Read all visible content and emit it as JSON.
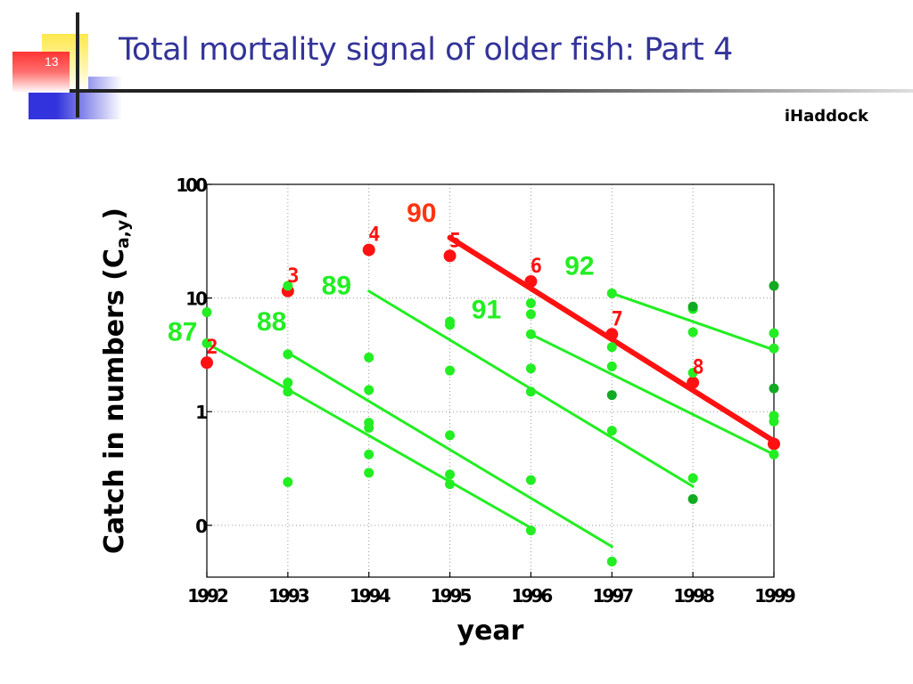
{
  "slide": {
    "number": "13",
    "title": "Total mortality signal of older fish: Part 4",
    "species": "iHaddock",
    "colors": {
      "title": "#333399",
      "accent_blue": "#3333dd",
      "accent_red": "#ff3333"
    }
  },
  "chart_data": {
    "type": "scatter",
    "xlabel": "year",
    "ylabel": "Catch in numbers (Ca,y)",
    "ylabel_main": "Catch in numbers (C",
    "ylabel_sub": "a,y",
    "ylabel_close": ")",
    "y_scale": "log",
    "xlim": [
      1992,
      1999
    ],
    "ylim": [
      0.035,
      100
    ],
    "grid": true,
    "xticks": [
      {
        "value": 1992,
        "label": "1992"
      },
      {
        "value": 1993,
        "label": "1993"
      },
      {
        "value": 1994,
        "label": "1994"
      },
      {
        "value": 1995,
        "label": "1995"
      },
      {
        "value": 1996,
        "label": "1996"
      },
      {
        "value": 1997,
        "label": "1997"
      },
      {
        "value": 1998,
        "label": "1998"
      },
      {
        "value": 1999,
        "label": "1999"
      }
    ],
    "yticks": [
      {
        "value": 100,
        "label": "100"
      },
      {
        "value": 10,
        "label": "10"
      },
      {
        "value": 1,
        "label": "1"
      },
      {
        "value": 0.1,
        "label": "0"
      }
    ],
    "series": [
      {
        "color": "#ff1111",
        "cohort": "90",
        "points": [
          [
            1992,
            2.7
          ],
          [
            1993,
            11.5
          ],
          [
            1994,
            26.5
          ],
          [
            1995,
            23.5
          ],
          [
            1996,
            14
          ],
          [
            1997,
            4.8
          ],
          [
            1998,
            1.8
          ],
          [
            1999,
            0.52
          ]
        ],
        "age_labels": [
          {
            "x": 1992,
            "y": 2.7,
            "text": "2"
          },
          {
            "x": 1993,
            "y": 11.5,
            "text": "3"
          },
          {
            "x": 1994,
            "y": 26.5,
            "text": "4"
          },
          {
            "x": 1995,
            "y": 23.5,
            "text": "5"
          },
          {
            "x": 1996,
            "y": 14,
            "text": "6"
          },
          {
            "x": 1997,
            "y": 4.8,
            "text": "7"
          },
          {
            "x": 1998,
            "y": 1.8,
            "text": "8"
          }
        ],
        "fit_line": [
          [
            1995,
            34
          ],
          [
            1999,
            0.55
          ]
        ]
      },
      {
        "color": "#22ee22",
        "points": [
          [
            1992,
            7.5
          ],
          [
            1992,
            4.0
          ],
          [
            1993,
            12.8
          ],
          [
            1993,
            3.2
          ],
          [
            1993,
            1.8
          ],
          [
            1993,
            1.5
          ],
          [
            1993,
            0.24
          ],
          [
            1994,
            3.0
          ],
          [
            1994,
            1.55
          ],
          [
            1994,
            0.8
          ],
          [
            1994,
            0.72
          ],
          [
            1994,
            0.42
          ],
          [
            1994,
            0.29
          ],
          [
            1995,
            6.2
          ],
          [
            1995,
            5.8
          ],
          [
            1995,
            2.3
          ],
          [
            1995,
            0.62
          ],
          [
            1995,
            0.28
          ],
          [
            1995,
            0.23
          ],
          [
            1996,
            9.0
          ],
          [
            1996,
            7.2
          ],
          [
            1996,
            4.8
          ],
          [
            1996,
            2.4
          ],
          [
            1996,
            1.5
          ],
          [
            1996,
            0.25
          ],
          [
            1996,
            0.09
          ],
          [
            1997,
            11
          ],
          [
            1997,
            3.7
          ],
          [
            1997,
            2.5
          ],
          [
            1997,
            0.68
          ],
          [
            1997,
            0.048
          ],
          [
            1998,
            8.0
          ],
          [
            1998,
            5.0
          ],
          [
            1998,
            2.2
          ],
          [
            1998,
            0.26
          ],
          [
            1999,
            4.9
          ],
          [
            1999,
            3.6
          ],
          [
            1999,
            0.92
          ],
          [
            1999,
            0.82
          ],
          [
            1999,
            0.42
          ]
        ],
        "fit_lines": [
          {
            "cohort": "87",
            "line": [
              [
                1992,
                4.0
              ],
              [
                1996,
                0.095
              ]
            ]
          },
          {
            "cohort": "88",
            "line": [
              [
                1993,
                3.3
              ],
              [
                1997,
                0.065
              ]
            ]
          },
          {
            "cohort": "89",
            "line": [
              [
                1994,
                11.5
              ],
              [
                1998,
                0.22
              ]
            ]
          },
          {
            "cohort": "91",
            "line": [
              [
                1996,
                4.8
              ],
              [
                1999,
                0.42
              ]
            ]
          },
          {
            "cohort": "92",
            "line": [
              [
                1997,
                11
              ],
              [
                1999,
                3.5
              ]
            ]
          }
        ]
      },
      {
        "color": "#11aa22",
        "points": [
          [
            1997,
            1.4
          ],
          [
            1998,
            8.4
          ],
          [
            1998,
            0.17
          ],
          [
            1999,
            12.8
          ],
          [
            1999,
            1.6
          ]
        ]
      }
    ],
    "cohort_labels": [
      {
        "text": "87",
        "x": 1991.7,
        "y": 4.2,
        "color": "#22ee22"
      },
      {
        "text": "88",
        "x": 1992.8,
        "y": 5.2,
        "color": "#22ee22"
      },
      {
        "text": "89",
        "x": 1993.6,
        "y": 10.8,
        "color": "#22ee22"
      },
      {
        "text": "90",
        "x": 1994.65,
        "y": 47,
        "color": "#ff3311"
      },
      {
        "text": "91",
        "x": 1995.45,
        "y": 6.6,
        "color": "#22ee22"
      },
      {
        "text": "92",
        "x": 1996.6,
        "y": 16,
        "color": "#22ee22"
      }
    ]
  }
}
